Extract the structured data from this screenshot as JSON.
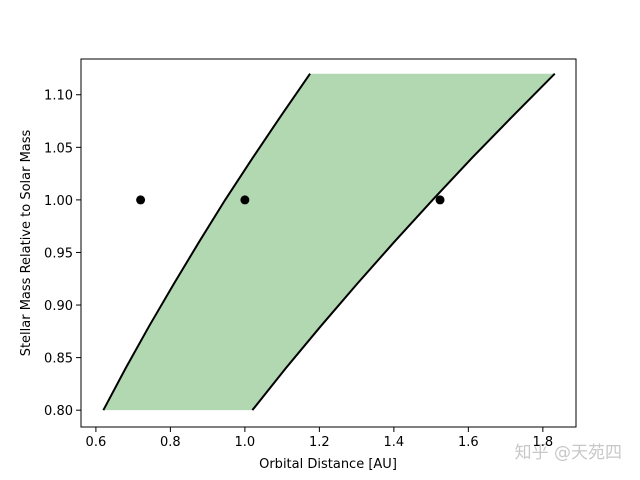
{
  "chart_data": {
    "type": "line",
    "xlabel": "Orbital Distance [AU]",
    "ylabel": "Stellar Mass Relative to Solar Mass",
    "xlim": [
      0.56,
      1.889
    ],
    "ylim": [
      0.784,
      1.134
    ],
    "xticks": [
      0.6,
      0.8,
      {
        "value": 1,
        "label": "1.0"
      },
      1.2,
      1.4,
      1.6,
      1.8
    ],
    "yticks": [
      {
        "value": 0.8,
        "label": "0.80"
      },
      0.85,
      {
        "value": 0.9,
        "label": "0.90"
      },
      0.95,
      {
        "value": 1,
        "label": "1.00"
      },
      1.05,
      {
        "value": 1.1,
        "label": "1.10"
      }
    ],
    "fill_color": "#b2d8b2",
    "series": [
      {
        "color": "#000000",
        "x": [
          0.62,
          0.68,
          0.743,
          0.809,
          0.877,
          0.947,
          1.021,
          1.097,
          1.175
        ],
        "y": [
          0.8,
          0.84,
          0.88,
          0.92,
          0.96,
          1.0,
          1.04,
          1.08,
          1.12
        ]
      },
      {
        "color": "#000000",
        "x": [
          1.02,
          1.11,
          1.204,
          1.301,
          1.401,
          1.504,
          1.61,
          1.72,
          1.832
        ],
        "y": [
          0.8,
          0.84,
          0.88,
          0.92,
          0.96,
          1.0,
          1.04,
          1.08,
          1.12
        ]
      }
    ],
    "points": {
      "color": "#000000",
      "x": [
        0.72,
        1.0,
        1.524
      ],
      "y": [
        1.0,
        1.0,
        1.0
      ]
    },
    "watermark": "知乎 @天苑四"
  }
}
